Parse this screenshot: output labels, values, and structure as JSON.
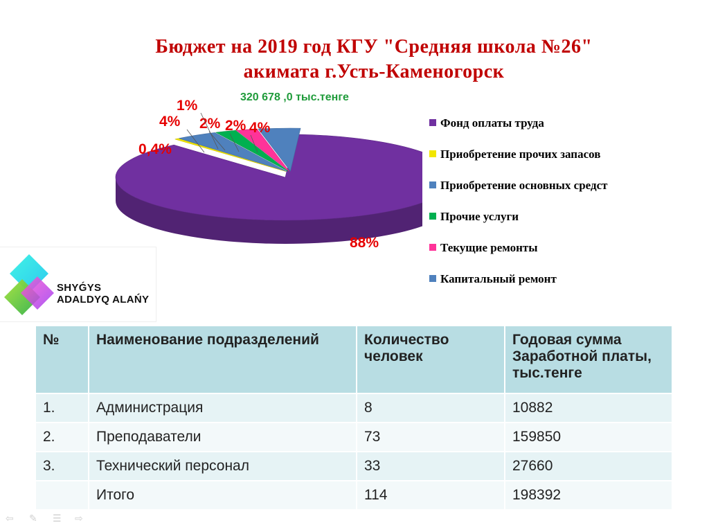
{
  "title_lines": [
    "Бюджет на 2019 год КГУ \"Средняя школа №26\"",
    "акимата г.Усть-Каменогорск"
  ],
  "chart_data": {
    "type": "pie",
    "subtitle": "320 678 ,0 тыс.тенге",
    "slices": [
      {
        "name": "Фонд оплаты труда",
        "value": 88,
        "label": "88%",
        "color": "#7030a0"
      },
      {
        "name": "Приобретение прочих запасов",
        "value": 0.4,
        "label": "0,4%",
        "color": "#f2e600"
      },
      {
        "name": "Приобретение основных средст",
        "value": 4,
        "label": "4%",
        "color": "#4f81bd"
      },
      {
        "name": "Прочие услуги",
        "value": 2,
        "label": "2%",
        "color": "#00b050"
      },
      {
        "name": "Текущие ремонты",
        "value": 2,
        "label": "2%",
        "color": "#ff3399"
      },
      {
        "name": "Капитальный ремонт",
        "value": 4,
        "label": "4%",
        "color": "#4f81bd"
      }
    ],
    "extra_labels": [
      "1%"
    ]
  },
  "logo": {
    "line1": "SHYǴYS",
    "line2": "ADALDYQ ALAŃY"
  },
  "table": {
    "headers": [
      "№",
      "Наименование подразделений",
      "Количество человек",
      "Годовая сумма Заработной платы, тыс.тенге"
    ],
    "rows": [
      [
        "1.",
        "Администрация",
        "8",
        "10882"
      ],
      [
        "2.",
        "Преподаватели",
        "73",
        "159850"
      ],
      [
        "3.",
        "Технический персонал",
        "33",
        "27660"
      ],
      [
        "",
        "Итого",
        "114",
        "198392"
      ]
    ]
  },
  "nav_icons": [
    "back-arrow-icon",
    "pen-icon",
    "menu-icon",
    "forward-arrow-icon"
  ]
}
